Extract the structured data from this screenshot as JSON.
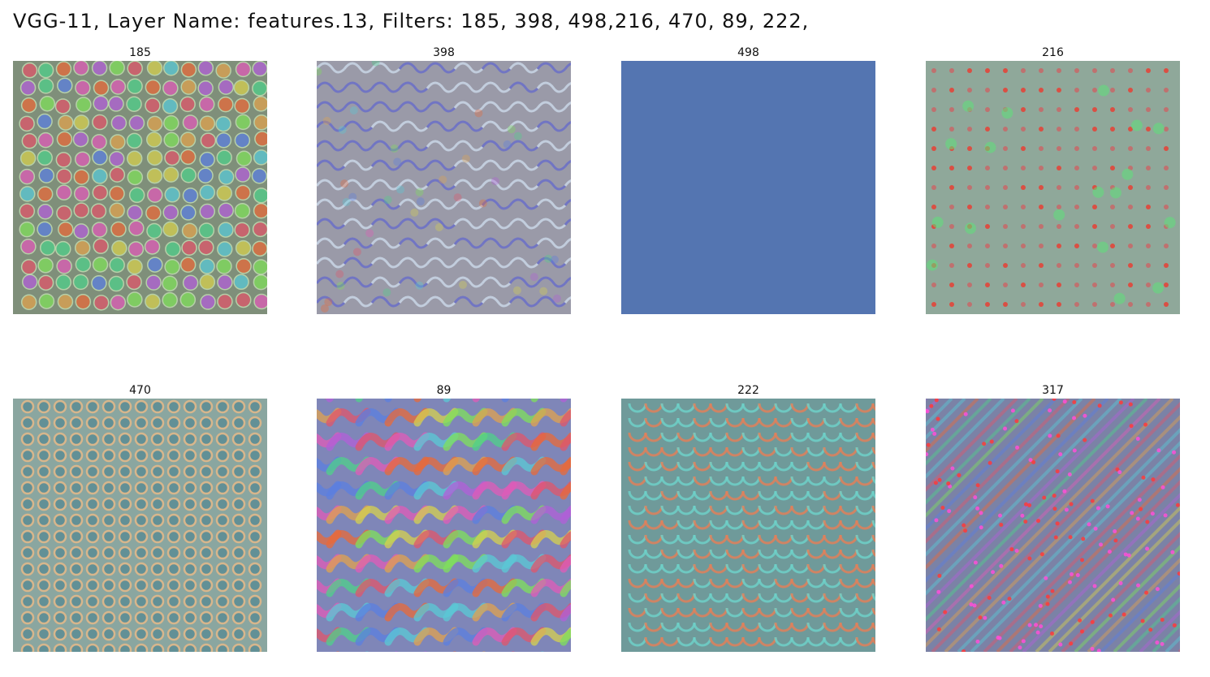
{
  "figure": {
    "title": "VGG-11,  Layer  Name:  features.13,  Filters:  185,  398,  498,216,  470,  89,  222,"
  },
  "panels": [
    {
      "label": "185",
      "pattern": "cells",
      "base": "#7f8f7a"
    },
    {
      "label": "398",
      "pattern": "waves",
      "base": "#9a9aa8"
    },
    {
      "label": "498",
      "pattern": "flat",
      "base": "#5677b3"
    },
    {
      "label": "216",
      "pattern": "dots",
      "base": "#8fa89a"
    },
    {
      "label": "470",
      "pattern": "rings",
      "base": "#8aa6a0"
    },
    {
      "label": "89",
      "pattern": "swirls",
      "base": "#7f86b8"
    },
    {
      "label": "222",
      "pattern": "scales",
      "base": "#6f9a9a"
    },
    {
      "label": "317",
      "pattern": "diag",
      "base": "#7b82a6"
    }
  ]
}
